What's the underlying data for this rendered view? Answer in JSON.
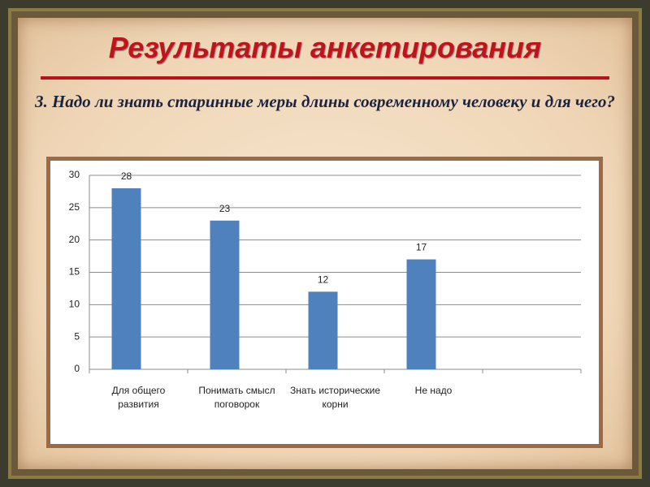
{
  "header": {
    "title": "Результаты анкетирования",
    "subtitle": "3. Надо ли знать старинные меры длины современному человеку и для чего?"
  },
  "chart_data": {
    "type": "bar",
    "categories": [
      "Для общего развития",
      "Понимать смысл поговорок",
      "Знать исторические корни",
      "Не надо",
      null
    ],
    "values": [
      28,
      23,
      12,
      17,
      null
    ],
    "color": "#4f81bd",
    "ylim": [
      0,
      30
    ],
    "yticks": [
      0,
      5,
      10,
      15,
      20,
      25,
      30
    ],
    "grid": true
  }
}
